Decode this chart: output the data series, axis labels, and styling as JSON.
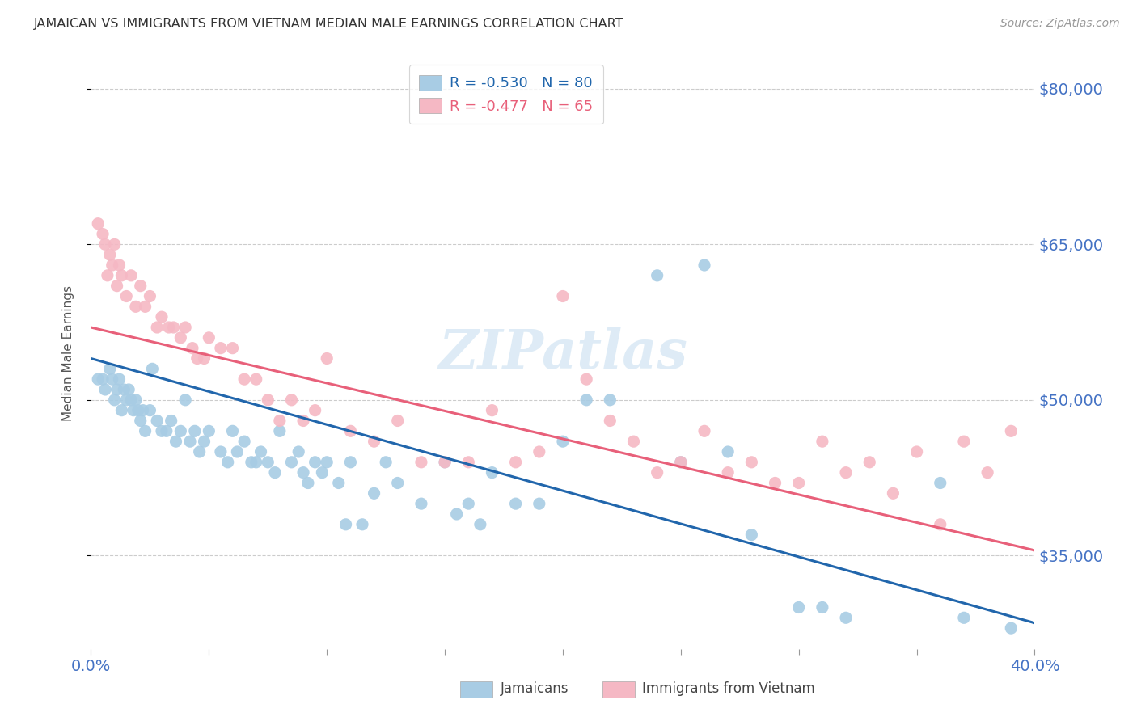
{
  "title": "JAMAICAN VS IMMIGRANTS FROM VIETNAM MEDIAN MALE EARNINGS CORRELATION CHART",
  "source": "Source: ZipAtlas.com",
  "ylabel": "Median Male Earnings",
  "xlim": [
    0.0,
    0.4
  ],
  "ylim": [
    26000,
    83000
  ],
  "yticks": [
    35000,
    50000,
    65000,
    80000
  ],
  "ytick_labels": [
    "$35,000",
    "$50,000",
    "$65,000",
    "$80,000"
  ],
  "xticks": [
    0.0,
    0.05,
    0.1,
    0.15,
    0.2,
    0.25,
    0.3,
    0.35,
    0.4
  ],
  "xtick_labels": [
    "0.0%",
    "",
    "",
    "",
    "",
    "",
    "",
    "",
    "40.0%"
  ],
  "blue_color": "#a8cce4",
  "pink_color": "#f5b8c4",
  "blue_line_color": "#2166ac",
  "pink_line_color": "#e8607a",
  "blue_R": -0.53,
  "blue_N": 80,
  "pink_R": -0.477,
  "pink_N": 65,
  "legend_label_blue": "Jamaicans",
  "legend_label_pink": "Immigrants from Vietnam",
  "watermark": "ZIPatlas",
  "background_color": "#ffffff",
  "blue_scatter_x": [
    0.003,
    0.005,
    0.006,
    0.008,
    0.009,
    0.01,
    0.011,
    0.012,
    0.013,
    0.014,
    0.015,
    0.016,
    0.017,
    0.018,
    0.019,
    0.02,
    0.021,
    0.022,
    0.023,
    0.025,
    0.026,
    0.028,
    0.03,
    0.032,
    0.034,
    0.036,
    0.038,
    0.04,
    0.042,
    0.044,
    0.046,
    0.048,
    0.05,
    0.055,
    0.058,
    0.06,
    0.062,
    0.065,
    0.068,
    0.07,
    0.072,
    0.075,
    0.078,
    0.08,
    0.085,
    0.088,
    0.09,
    0.092,
    0.095,
    0.098,
    0.1,
    0.105,
    0.108,
    0.11,
    0.115,
    0.12,
    0.125,
    0.13,
    0.14,
    0.15,
    0.155,
    0.16,
    0.165,
    0.17,
    0.18,
    0.19,
    0.2,
    0.21,
    0.22,
    0.24,
    0.25,
    0.26,
    0.27,
    0.28,
    0.3,
    0.31,
    0.32,
    0.36,
    0.37,
    0.39
  ],
  "blue_scatter_y": [
    52000,
    52000,
    51000,
    53000,
    52000,
    50000,
    51000,
    52000,
    49000,
    51000,
    50000,
    51000,
    50000,
    49000,
    50000,
    49000,
    48000,
    49000,
    47000,
    49000,
    53000,
    48000,
    47000,
    47000,
    48000,
    46000,
    47000,
    50000,
    46000,
    47000,
    45000,
    46000,
    47000,
    45000,
    44000,
    47000,
    45000,
    46000,
    44000,
    44000,
    45000,
    44000,
    43000,
    47000,
    44000,
    45000,
    43000,
    42000,
    44000,
    43000,
    44000,
    42000,
    38000,
    44000,
    38000,
    41000,
    44000,
    42000,
    40000,
    44000,
    39000,
    40000,
    38000,
    43000,
    40000,
    40000,
    46000,
    50000,
    50000,
    62000,
    44000,
    63000,
    45000,
    37000,
    30000,
    30000,
    29000,
    42000,
    29000,
    28000
  ],
  "pink_scatter_x": [
    0.003,
    0.005,
    0.006,
    0.007,
    0.008,
    0.009,
    0.01,
    0.011,
    0.012,
    0.013,
    0.015,
    0.017,
    0.019,
    0.021,
    0.023,
    0.025,
    0.028,
    0.03,
    0.033,
    0.035,
    0.038,
    0.04,
    0.043,
    0.045,
    0.048,
    0.05,
    0.055,
    0.06,
    0.065,
    0.07,
    0.075,
    0.08,
    0.085,
    0.09,
    0.095,
    0.1,
    0.11,
    0.12,
    0.13,
    0.14,
    0.15,
    0.16,
    0.17,
    0.18,
    0.19,
    0.2,
    0.21,
    0.22,
    0.23,
    0.24,
    0.25,
    0.26,
    0.27,
    0.28,
    0.29,
    0.3,
    0.31,
    0.32,
    0.33,
    0.34,
    0.35,
    0.36,
    0.37,
    0.38,
    0.39
  ],
  "pink_scatter_y": [
    67000,
    66000,
    65000,
    62000,
    64000,
    63000,
    65000,
    61000,
    63000,
    62000,
    60000,
    62000,
    59000,
    61000,
    59000,
    60000,
    57000,
    58000,
    57000,
    57000,
    56000,
    57000,
    55000,
    54000,
    54000,
    56000,
    55000,
    55000,
    52000,
    52000,
    50000,
    48000,
    50000,
    48000,
    49000,
    54000,
    47000,
    46000,
    48000,
    44000,
    44000,
    44000,
    49000,
    44000,
    45000,
    60000,
    52000,
    48000,
    46000,
    43000,
    44000,
    47000,
    43000,
    44000,
    42000,
    42000,
    46000,
    43000,
    44000,
    41000,
    45000,
    38000,
    46000,
    43000,
    47000
  ],
  "blue_line_x0": 0.0,
  "blue_line_x1": 0.4,
  "blue_line_y0": 54000,
  "blue_line_y1": 28500,
  "pink_line_x0": 0.0,
  "pink_line_x1": 0.4,
  "pink_line_y0": 57000,
  "pink_line_y1": 35500
}
